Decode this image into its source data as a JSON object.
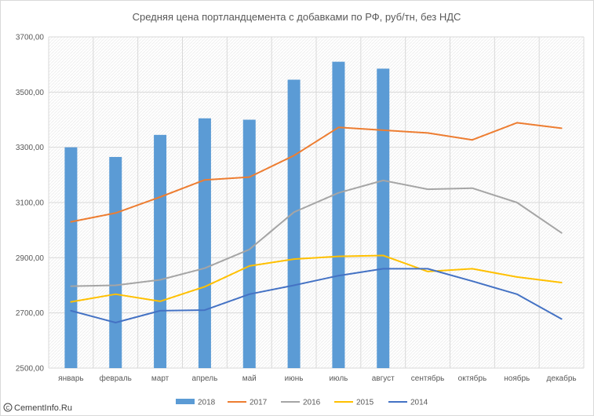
{
  "chart_data": {
    "type": "bar+line",
    "title": "Средняя цена портландцемента с добавками по РФ, руб/тн, без НДС",
    "categories": [
      "январь",
      "февраль",
      "март",
      "апрель",
      "май",
      "июнь",
      "июль",
      "август",
      "сентябрь",
      "октябрь",
      "ноябрь",
      "декабрь"
    ],
    "y_ticks": [
      "2500,00",
      "2700,00",
      "2900,00",
      "3100,00",
      "3300,00",
      "3500,00",
      "3700,00"
    ],
    "ylim": [
      2500,
      3700
    ],
    "grid": true,
    "legend_position": "bottom",
    "series": [
      {
        "name": "2018",
        "kind": "bar",
        "color": "#5b9bd5",
        "values": [
          3300,
          3265,
          3345,
          3405,
          3400,
          3545,
          3610,
          3585,
          null,
          null,
          null,
          null
        ]
      },
      {
        "name": "2017",
        "kind": "line",
        "color": "#ed7d31",
        "values": [
          3030,
          3062,
          3120,
          3182,
          3192,
          3270,
          3372,
          3362,
          3352,
          3327,
          3389,
          3369
        ]
      },
      {
        "name": "2016",
        "kind": "line",
        "color": "#a5a5a5",
        "values": [
          2797,
          2800,
          2820,
          2862,
          2930,
          3065,
          3135,
          3180,
          3148,
          3152,
          3100,
          2990
        ]
      },
      {
        "name": "2015",
        "kind": "line",
        "color": "#ffc000",
        "values": [
          2740,
          2768,
          2742,
          2795,
          2870,
          2895,
          2905,
          2908,
          2850,
          2860,
          2830,
          2810
        ]
      },
      {
        "name": "2014",
        "kind": "line",
        "color": "#4472c4",
        "values": [
          2708,
          2665,
          2708,
          2710,
          2768,
          2800,
          2835,
          2860,
          2860,
          2815,
          2768,
          2678
        ]
      }
    ]
  },
  "watermark": {
    "icon": "copyright-icon",
    "text": "CementInfo.Ru"
  }
}
